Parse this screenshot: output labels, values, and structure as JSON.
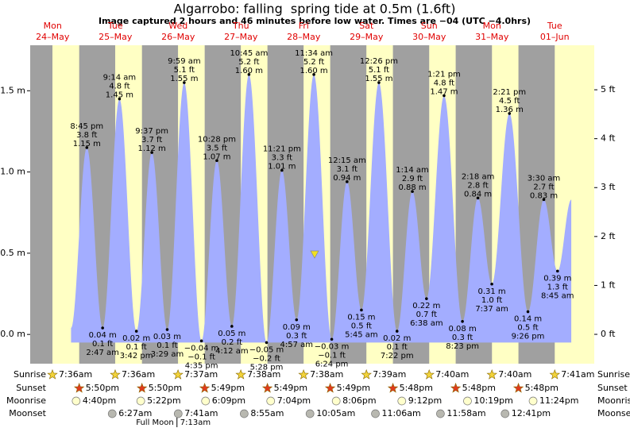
{
  "chart_data": {
    "type": "tide",
    "title": "Algarrobo: falling  spring tide at 0.5m (1.6ft)",
    "subtitle": "Image captured 2 hours and 46 minutes before low water. Times are −04 (UTC −4.0hrs)",
    "ylim": [
      -0.18,
      1.78
    ],
    "yticks": [
      {
        "value": 0,
        "label": "0.0 m"
      },
      {
        "value": 0.5,
        "label": "0.5 m"
      },
      {
        "value": 1,
        "label": "1.0 m"
      },
      {
        "value": 1.5,
        "label": "1.5 m"
      }
    ],
    "y2lim": [
      -0.6,
      5.91
    ],
    "y2ticks": [
      {
        "value": 0,
        "label": "0 ft"
      },
      {
        "value": 1,
        "label": "1 ft"
      },
      {
        "value": 2,
        "label": "2 ft"
      },
      {
        "value": 3,
        "label": "3 ft"
      },
      {
        "value": 4,
        "label": "4 ft"
      },
      {
        "value": 5,
        "label": "5 ft"
      }
    ],
    "color": "#a3adff",
    "row_labels": [
      "Sunrise",
      "Sunset",
      "Moonrise",
      "Moonset"
    ],
    "days": [
      {
        "weekday": "Mon",
        "date": "24–May",
        "sunrise": "7:36am",
        "sunset": "5:50pm",
        "moonrise": "4:40pm",
        "tides": [
          {
            "time": "8:45 pm",
            "value": 1.15,
            "value_label": "1.15 m",
            "value_label_ft": "3.8 ft"
          }
        ]
      },
      {
        "weekday": "Tue",
        "date": "25–May",
        "sunrise": "7:36am",
        "sunset": "5:50pm",
        "moonrise": "5:22pm",
        "moonset": "6:27am",
        "tides": [
          {
            "time": "2:47 am",
            "value": 0.04,
            "value_label": "0.04 m",
            "value_label_ft": "0.1 ft"
          },
          {
            "time": "9:14 am",
            "value": 1.45,
            "value_label": "1.45 m",
            "value_label_ft": "4.8 ft"
          },
          {
            "time": "3:42 pm",
            "value": 0.02,
            "value_label": "0.02 m",
            "value_label_ft": "0.1 ft"
          },
          {
            "time": "9:37 pm",
            "value": 1.12,
            "value_label": "1.12 m",
            "value_label_ft": "3.7 ft"
          }
        ]
      },
      {
        "weekday": "Wed",
        "date": "26–May",
        "sunrise": "7:37am",
        "sunset": "5:49pm",
        "moonrise": "6:09pm",
        "moonset": "7:41am",
        "moon_phase": {
          "label": "Full Moon",
          "time": "7:13am"
        },
        "tides": [
          {
            "time": "3:29 am",
            "value": 0.03,
            "value_label": "0.03 m",
            "value_label_ft": "0.1 ft"
          },
          {
            "time": "9:59 am",
            "value": 1.55,
            "value_label": "1.55 m",
            "value_label_ft": "5.1 ft"
          },
          {
            "time": "4:35 pm",
            "value": -0.04,
            "value_label": "−0.04 m",
            "value_label_ft": "−0.1 ft"
          },
          {
            "time": "10:28 pm",
            "value": 1.07,
            "value_label": "1.07 m",
            "value_label_ft": "3.5 ft"
          }
        ]
      },
      {
        "weekday": "Thu",
        "date": "27–May",
        "sunrise": "7:38am",
        "sunset": "5:49pm",
        "moonrise": "7:04pm",
        "moonset": "8:55am",
        "tides": [
          {
            "time": "4:12 am",
            "value": 0.05,
            "value_label": "0.05 m",
            "value_label_ft": "0.2 ft"
          },
          {
            "time": "10:45 am",
            "value": 1.6,
            "value_label": "1.60 m",
            "value_label_ft": "5.2 ft"
          },
          {
            "time": "5:28 pm",
            "value": -0.05,
            "value_label": "−0.05 m",
            "value_label_ft": "−0.2 ft"
          },
          {
            "time": "11:21 pm",
            "value": 1.01,
            "value_label": "1.01 m",
            "value_label_ft": "3.3 ft"
          }
        ]
      },
      {
        "weekday": "Fri",
        "date": "28–May",
        "sunrise": "7:38am",
        "sunset": "5:49pm",
        "moonrise": "8:06pm",
        "moonset": "10:05am",
        "tides": [
          {
            "time": "4:57 am",
            "value": 0.09,
            "value_label": "0.09 m",
            "value_label_ft": "0.3 ft"
          },
          {
            "time": "11:34 am",
            "value": 1.6,
            "value_label": "1.60 m",
            "value_label_ft": "5.2 ft"
          },
          {
            "time": "6:24 pm",
            "value": -0.03,
            "value_label": "−0.03 m",
            "value_label_ft": "−0.1 ft"
          }
        ]
      },
      {
        "weekday": "Sat",
        "date": "29–May",
        "sunrise": "7:39am",
        "sunset": "5:48pm",
        "moonrise": "9:12pm",
        "moonset": "11:06am",
        "tides": [
          {
            "time": "12:15 am",
            "value": 0.94,
            "value_label": "0.94 m",
            "value_label_ft": "3.1 ft"
          },
          {
            "time": "5:45 am",
            "value": 0.15,
            "value_label": "0.15 m",
            "value_label_ft": "0.5 ft"
          },
          {
            "time": "12:26 pm",
            "value": 1.55,
            "value_label": "1.55 m",
            "value_label_ft": "5.1 ft"
          },
          {
            "time": "7:22 pm",
            "value": 0.02,
            "value_label": "0.02 m",
            "value_label_ft": "0.1 ft"
          }
        ]
      },
      {
        "weekday": "Sun",
        "date": "30–May",
        "sunrise": "7:40am",
        "sunset": "5:48pm",
        "moonrise": "10:19pm",
        "moonset": "11:58am",
        "tides": [
          {
            "time": "1:14 am",
            "value": 0.88,
            "value_label": "0.88 m",
            "value_label_ft": "2.9 ft"
          },
          {
            "time": "6:38 am",
            "value": 0.22,
            "value_label": "0.22 m",
            "value_label_ft": "0.7 ft"
          },
          {
            "time": "1:21 pm",
            "value": 1.47,
            "value_label": "1.47 m",
            "value_label_ft": "4.8 ft"
          },
          {
            "time": "8:23 pm",
            "value": 0.08,
            "value_label": "0.08 m",
            "value_label_ft": "0.3 ft"
          }
        ]
      },
      {
        "weekday": "Mon",
        "date": "31–May",
        "sunrise": "7:40am",
        "sunset": "5:48pm",
        "moonrise": "11:24pm",
        "moonset": "12:41pm",
        "tides": [
          {
            "time": "2:18 am",
            "value": 0.84,
            "value_label": "0.84 m",
            "value_label_ft": "2.8 ft"
          },
          {
            "time": "7:37 am",
            "value": 0.31,
            "value_label": "0.31 m",
            "value_label_ft": "1.0 ft"
          },
          {
            "time": "2:21 pm",
            "value": 1.36,
            "value_label": "1.36 m",
            "value_label_ft": "4.5 ft"
          },
          {
            "time": "9:26 pm",
            "value": 0.14,
            "value_label": "0.14 m",
            "value_label_ft": "0.5 ft"
          }
        ]
      },
      {
        "weekday": "Tue",
        "date": "01–Jun",
        "sunrise": "7:41am",
        "tides": [
          {
            "time": "3:30 am",
            "value": 0.83,
            "value_label": "0.83 m",
            "value_label_ft": "2.7 ft"
          },
          {
            "time": "8:45 am",
            "value": 0.39,
            "value_label": "0.39 m",
            "value_label_ft": "1.3 ft"
          }
        ]
      }
    ]
  }
}
